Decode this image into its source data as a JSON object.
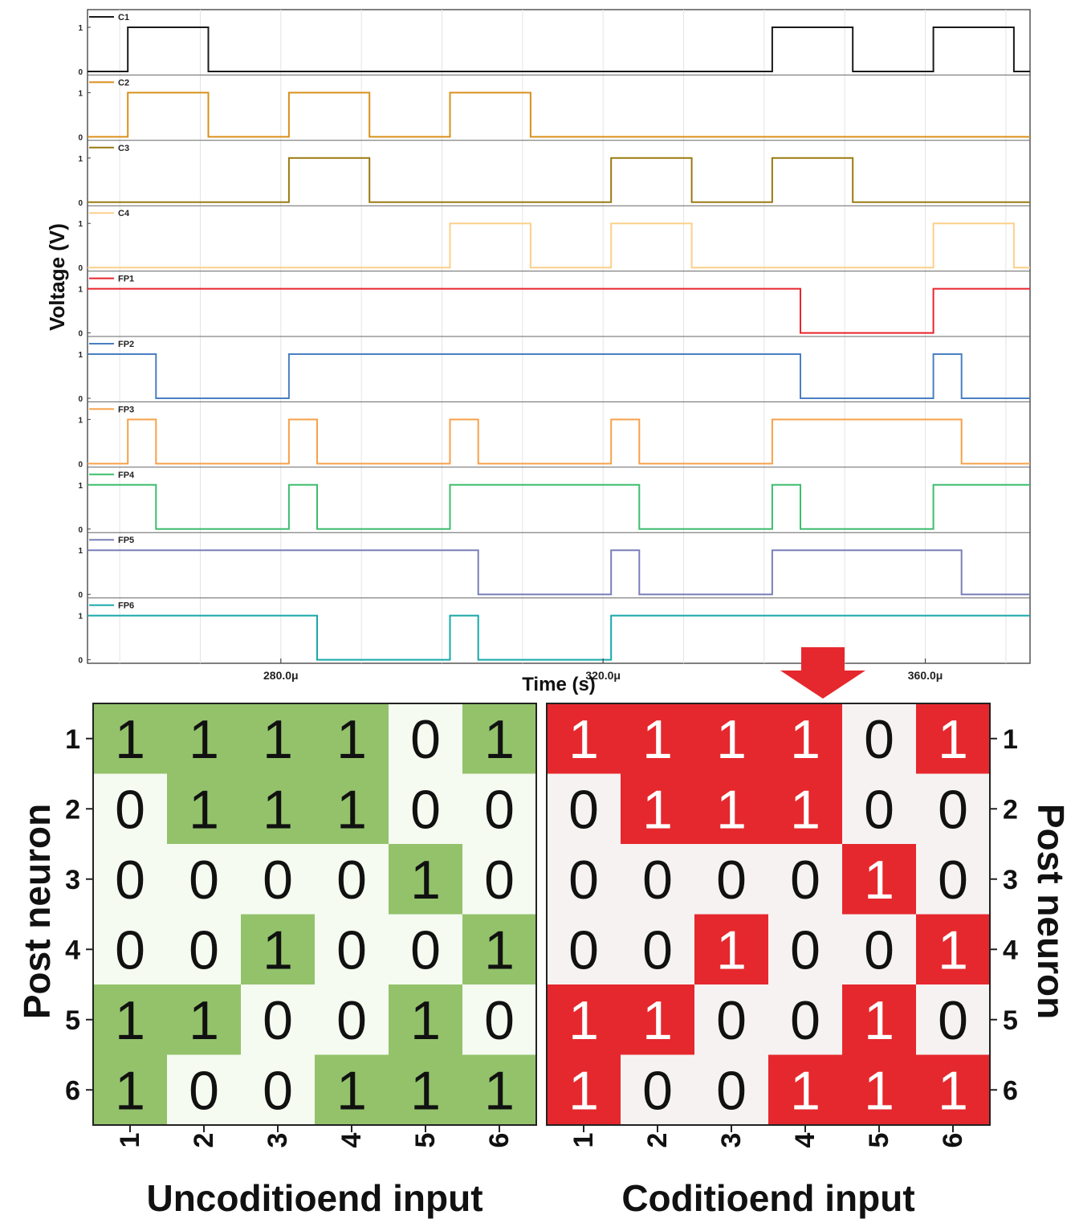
{
  "chart_data": [
    {
      "type": "line",
      "subtype": "stacked-digital-waveforms",
      "xlabel": "Time (s)",
      "ylabel": "Voltage (V)",
      "xlim": [
        256,
        373
      ],
      "x_ticks": [
        280,
        320,
        360
      ],
      "x_tick_labels": [
        "280.0μ",
        "320.0μ",
        "360.0μ"
      ],
      "y_ticks": [
        0,
        1
      ],
      "y_tick_labels": [
        "0",
        "1"
      ],
      "x_unit_note": "microseconds",
      "series": [
        {
          "name": "C1",
          "color": "#1a1a1a",
          "points": [
            [
              256,
              0
            ],
            [
              261,
              0
            ],
            [
              261,
              1
            ],
            [
              271,
              1
            ],
            [
              271,
              0
            ],
            [
              341,
              0
            ],
            [
              341,
              1
            ],
            [
              351,
              1
            ],
            [
              351,
              0
            ],
            [
              361,
              0
            ],
            [
              361,
              1
            ],
            [
              371,
              1
            ],
            [
              371,
              0
            ],
            [
              373,
              0
            ]
          ]
        },
        {
          "name": "C2",
          "color": "#d9901a",
          "points": [
            [
              256,
              0
            ],
            [
              261,
              0
            ],
            [
              261,
              1
            ],
            [
              271,
              1
            ],
            [
              271,
              0
            ],
            [
              281,
              0
            ],
            [
              281,
              1
            ],
            [
              291,
              1
            ],
            [
              291,
              0
            ],
            [
              301,
              0
            ],
            [
              301,
              1
            ],
            [
              311,
              1
            ],
            [
              311,
              0
            ],
            [
              373,
              0
            ]
          ]
        },
        {
          "name": "C3",
          "color": "#9a7a10",
          "points": [
            [
              256,
              0
            ],
            [
              281,
              0
            ],
            [
              281,
              1
            ],
            [
              291,
              1
            ],
            [
              291,
              0
            ],
            [
              321,
              0
            ],
            [
              321,
              1
            ],
            [
              331,
              1
            ],
            [
              331,
              0
            ],
            [
              341,
              0
            ],
            [
              341,
              1
            ],
            [
              351,
              1
            ],
            [
              351,
              0
            ],
            [
              373,
              0
            ]
          ]
        },
        {
          "name": "C4",
          "color": "#fcd08a",
          "points": [
            [
              256,
              0
            ],
            [
              301,
              0
            ],
            [
              301,
              1
            ],
            [
              311,
              1
            ],
            [
              311,
              0
            ],
            [
              321,
              0
            ],
            [
              321,
              1
            ],
            [
              331,
              1
            ],
            [
              331,
              0
            ],
            [
              361,
              0
            ],
            [
              361,
              1
            ],
            [
              371,
              1
            ],
            [
              371,
              0
            ],
            [
              373,
              0
            ]
          ]
        },
        {
          "name": "FP1",
          "color": "#e8242b",
          "points": [
            [
              256,
              1
            ],
            [
              344.5,
              1
            ],
            [
              344.5,
              0
            ],
            [
              361,
              0
            ],
            [
              361,
              1
            ],
            [
              373,
              1
            ]
          ]
        },
        {
          "name": "FP2",
          "color": "#4a7fc1",
          "points": [
            [
              256,
              1
            ],
            [
              264.5,
              1
            ],
            [
              264.5,
              0
            ],
            [
              281,
              0
            ],
            [
              281,
              1
            ],
            [
              344.5,
              1
            ],
            [
              344.5,
              0
            ],
            [
              361,
              0
            ],
            [
              361,
              1
            ],
            [
              364.5,
              1
            ],
            [
              364.5,
              0
            ],
            [
              373,
              0
            ]
          ]
        },
        {
          "name": "FP3",
          "color": "#f7a14a",
          "points": [
            [
              256,
              0
            ],
            [
              261,
              0
            ],
            [
              261,
              1
            ],
            [
              264.5,
              1
            ],
            [
              264.5,
              0
            ],
            [
              281,
              0
            ],
            [
              281,
              1
            ],
            [
              284.5,
              1
            ],
            [
              284.5,
              0
            ],
            [
              301,
              0
            ],
            [
              301,
              1
            ],
            [
              304.5,
              1
            ],
            [
              304.5,
              0
            ],
            [
              321,
              0
            ],
            [
              321,
              1
            ],
            [
              324.5,
              1
            ],
            [
              324.5,
              0
            ],
            [
              341,
              0
            ],
            [
              341,
              1
            ],
            [
              364.5,
              1
            ],
            [
              364.5,
              0
            ],
            [
              373,
              0
            ]
          ]
        },
        {
          "name": "FP4",
          "color": "#3dbd6d",
          "points": [
            [
              256,
              1
            ],
            [
              264.5,
              1
            ],
            [
              264.5,
              0
            ],
            [
              281,
              0
            ],
            [
              281,
              1
            ],
            [
              284.5,
              1
            ],
            [
              284.5,
              0
            ],
            [
              301,
              0
            ],
            [
              301,
              1
            ],
            [
              324.5,
              1
            ],
            [
              324.5,
              0
            ],
            [
              341,
              0
            ],
            [
              341,
              1
            ],
            [
              344.5,
              1
            ],
            [
              344.5,
              0
            ],
            [
              361,
              0
            ],
            [
              361,
              1
            ],
            [
              373,
              1
            ]
          ]
        },
        {
          "name": "FP5",
          "color": "#7a7fb8",
          "points": [
            [
              256,
              1
            ],
            [
              304.5,
              1
            ],
            [
              304.5,
              0
            ],
            [
              321,
              0
            ],
            [
              321,
              1
            ],
            [
              324.5,
              1
            ],
            [
              324.5,
              0
            ],
            [
              341,
              0
            ],
            [
              341,
              1
            ],
            [
              364.5,
              1
            ],
            [
              364.5,
              0
            ],
            [
              373,
              0
            ]
          ]
        },
        {
          "name": "FP6",
          "color": "#17a8a8",
          "points": [
            [
              256,
              1
            ],
            [
              284.5,
              1
            ],
            [
              284.5,
              0
            ],
            [
              301,
              0
            ],
            [
              301,
              1
            ],
            [
              304.5,
              1
            ],
            [
              304.5,
              0
            ],
            [
              321,
              0
            ],
            [
              321,
              1
            ],
            [
              373,
              1
            ]
          ]
        }
      ]
    },
    {
      "type": "heatmap",
      "title": "",
      "xlabel": "Uncoditioend input",
      "ylabel": "Post neuron",
      "x_categories": [
        "1",
        "2",
        "3",
        "4",
        "5",
        "6"
      ],
      "y_categories": [
        "1",
        "2",
        "3",
        "4",
        "5",
        "6"
      ],
      "colors": {
        "one": "#93c26b",
        "zero": "#f5fbf0"
      },
      "values": [
        [
          1,
          1,
          1,
          1,
          0,
          1
        ],
        [
          0,
          1,
          1,
          1,
          0,
          0
        ],
        [
          0,
          0,
          0,
          0,
          1,
          0
        ],
        [
          0,
          0,
          1,
          0,
          0,
          1
        ],
        [
          1,
          1,
          0,
          0,
          1,
          0
        ],
        [
          1,
          0,
          0,
          1,
          1,
          1
        ]
      ]
    },
    {
      "type": "heatmap",
      "title": "",
      "xlabel": "Coditioend input",
      "ylabel": "Post neuron",
      "x_categories": [
        "1",
        "2",
        "3",
        "4",
        "5",
        "6"
      ],
      "y_categories": [
        "1",
        "2",
        "3",
        "4",
        "5",
        "6"
      ],
      "colors": {
        "one": "#e5282d",
        "zero": "#f6f2f2"
      },
      "values": [
        [
          1,
          1,
          1,
          1,
          0,
          1
        ],
        [
          0,
          1,
          1,
          1,
          0,
          0
        ],
        [
          0,
          0,
          0,
          0,
          1,
          0
        ],
        [
          0,
          0,
          1,
          0,
          0,
          1
        ],
        [
          1,
          1,
          0,
          0,
          1,
          0
        ],
        [
          1,
          0,
          0,
          1,
          1,
          1
        ]
      ]
    }
  ],
  "arrow_color": "#e5282d"
}
